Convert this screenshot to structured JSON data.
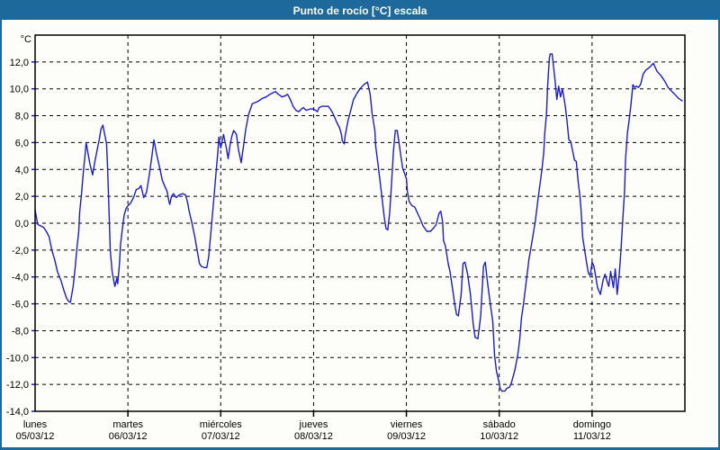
{
  "window": {
    "title": "Punto de rocío [°C] escala"
  },
  "colors": {
    "frame_blue": "#1e699c",
    "title_text": "#ffffff",
    "series_blue": "#1c1ccd",
    "grid_black": "#000000",
    "plot_background": "#fdfdfa"
  },
  "chart_data": {
    "type": "line",
    "title": "Punto de rocío [°C] escala",
    "grid": "dashed",
    "legend_position": "none",
    "y_axis": {
      "unit_label": "°C",
      "min": -14,
      "max": 14,
      "tick_step": 2,
      "ticks": [
        {
          "value": 12,
          "label": "12,0"
        },
        {
          "value": 10,
          "label": "10,0"
        },
        {
          "value": 8,
          "label": "8,0"
        },
        {
          "value": 6,
          "label": "6,0"
        },
        {
          "value": 4,
          "label": "4,0"
        },
        {
          "value": 2,
          "label": "2,0"
        },
        {
          "value": 0,
          "label": "0,0"
        },
        {
          "value": -2,
          "label": "-2,0"
        },
        {
          "value": -4,
          "label": "-4,0"
        },
        {
          "value": -6,
          "label": "-6,0"
        },
        {
          "value": -8,
          "label": "-8,0"
        },
        {
          "value": -10,
          "label": "-10,0"
        },
        {
          "value": -12,
          "label": "-12,0"
        },
        {
          "value": -14,
          "label": "-14,0"
        }
      ]
    },
    "x_axis": {
      "unit": "days",
      "range_days": [
        0,
        7
      ],
      "days": [
        {
          "name": "lunes",
          "date": "05/03/12"
        },
        {
          "name": "martes",
          "date": "06/03/12"
        },
        {
          "name": "miércoles",
          "date": "07/03/12"
        },
        {
          "name": "jueves",
          "date": "08/03/12"
        },
        {
          "name": "viernes",
          "date": "09/03/12"
        },
        {
          "name": "sábado",
          "date": "10/03/12"
        },
        {
          "name": "domingo",
          "date": "11/03/12"
        }
      ]
    },
    "series": [
      {
        "name": "Punto de rocío",
        "color": "#1c1ccd",
        "x_unit": "days_since_monday_00h",
        "y_unit": "°C",
        "points": [
          [
            0.0,
            1.0
          ],
          [
            0.02,
            0.2
          ],
          [
            0.03,
            -0.1
          ],
          [
            0.06,
            -0.2
          ],
          [
            0.09,
            -0.3
          ],
          [
            0.12,
            -0.6
          ],
          [
            0.15,
            -1.0
          ],
          [
            0.18,
            -2.0
          ],
          [
            0.21,
            -2.7
          ],
          [
            0.24,
            -3.6
          ],
          [
            0.28,
            -4.3
          ],
          [
            0.31,
            -5.0
          ],
          [
            0.34,
            -5.6
          ],
          [
            0.36,
            -5.8
          ],
          [
            0.38,
            -5.9
          ],
          [
            0.41,
            -4.7
          ],
          [
            0.43,
            -3.4
          ],
          [
            0.45,
            -1.9
          ],
          [
            0.47,
            -0.6
          ],
          [
            0.48,
            0.8
          ],
          [
            0.5,
            2.2
          ],
          [
            0.52,
            3.8
          ],
          [
            0.54,
            5.2
          ],
          [
            0.55,
            6.0
          ],
          [
            0.57,
            5.2
          ],
          [
            0.59,
            4.4
          ],
          [
            0.62,
            3.6
          ],
          [
            0.65,
            4.8
          ],
          [
            0.67,
            5.5
          ],
          [
            0.69,
            6.2
          ],
          [
            0.71,
            7.0
          ],
          [
            0.73,
            7.3
          ],
          [
            0.75,
            6.6
          ],
          [
            0.77,
            5.9
          ],
          [
            0.78,
            4.2
          ],
          [
            0.79,
            2.2
          ],
          [
            0.8,
            0.2
          ],
          [
            0.81,
            -2.0
          ],
          [
            0.83,
            -3.6
          ],
          [
            0.85,
            -4.4
          ],
          [
            0.86,
            -4.7
          ],
          [
            0.88,
            -4.1
          ],
          [
            0.89,
            -4.5
          ],
          [
            0.91,
            -2.9
          ],
          [
            0.92,
            -1.6
          ],
          [
            0.94,
            -0.4
          ],
          [
            0.96,
            0.6
          ],
          [
            0.98,
            1.1
          ],
          [
            1.0,
            1.3
          ],
          [
            1.03,
            1.5
          ],
          [
            1.06,
            1.9
          ],
          [
            1.09,
            2.5
          ],
          [
            1.12,
            2.6
          ],
          [
            1.14,
            2.8
          ],
          [
            1.17,
            1.9
          ],
          [
            1.2,
            2.3
          ],
          [
            1.23,
            3.6
          ],
          [
            1.26,
            5.1
          ],
          [
            1.28,
            6.2
          ],
          [
            1.31,
            5.1
          ],
          [
            1.34,
            4.2
          ],
          [
            1.37,
            3.2
          ],
          [
            1.4,
            2.7
          ],
          [
            1.42,
            2.4
          ],
          [
            1.44,
            1.7
          ],
          [
            1.45,
            1.4
          ],
          [
            1.47,
            2.0
          ],
          [
            1.49,
            2.2
          ],
          [
            1.52,
            1.9
          ],
          [
            1.55,
            2.1
          ],
          [
            1.59,
            2.2
          ],
          [
            1.62,
            2.1
          ],
          [
            1.64,
            1.6
          ],
          [
            1.66,
            0.9
          ],
          [
            1.69,
            0.0
          ],
          [
            1.72,
            -1.0
          ],
          [
            1.75,
            -2.2
          ],
          [
            1.77,
            -3.0
          ],
          [
            1.79,
            -3.2
          ],
          [
            1.82,
            -3.3
          ],
          [
            1.85,
            -3.3
          ],
          [
            1.87,
            -2.5
          ],
          [
            1.89,
            -1.0
          ],
          [
            1.91,
            0.6
          ],
          [
            1.93,
            2.2
          ],
          [
            1.95,
            3.8
          ],
          [
            1.97,
            5.4
          ],
          [
            1.98,
            6.4
          ],
          [
            2.0,
            5.6
          ],
          [
            2.03,
            6.6
          ],
          [
            2.06,
            5.6
          ],
          [
            2.08,
            4.8
          ],
          [
            2.1,
            5.8
          ],
          [
            2.12,
            6.5
          ],
          [
            2.14,
            6.9
          ],
          [
            2.17,
            6.6
          ],
          [
            2.19,
            5.5
          ],
          [
            2.22,
            4.5
          ],
          [
            2.25,
            6.0
          ],
          [
            2.27,
            7.0
          ],
          [
            2.3,
            8.1
          ],
          [
            2.34,
            8.9
          ],
          [
            2.38,
            9.0
          ],
          [
            2.41,
            9.1
          ],
          [
            2.45,
            9.3
          ],
          [
            2.49,
            9.4
          ],
          [
            2.53,
            9.6
          ],
          [
            2.56,
            9.7
          ],
          [
            2.59,
            9.8
          ],
          [
            2.62,
            9.6
          ],
          [
            2.66,
            9.4
          ],
          [
            2.7,
            9.5
          ],
          [
            2.72,
            9.6
          ],
          [
            2.75,
            9.2
          ],
          [
            2.78,
            8.7
          ],
          [
            2.81,
            8.4
          ],
          [
            2.84,
            8.3
          ],
          [
            2.87,
            8.5
          ],
          [
            2.89,
            8.6
          ],
          [
            2.92,
            8.4
          ],
          [
            2.96,
            8.5
          ],
          [
            3.0,
            8.5
          ],
          [
            3.04,
            8.3
          ],
          [
            3.06,
            8.6
          ],
          [
            3.09,
            8.7
          ],
          [
            3.13,
            8.7
          ],
          [
            3.16,
            8.7
          ],
          [
            3.19,
            8.4
          ],
          [
            3.22,
            8.0
          ],
          [
            3.25,
            7.5
          ],
          [
            3.28,
            7.1
          ],
          [
            3.3,
            6.6
          ],
          [
            3.31,
            6.1
          ],
          [
            3.33,
            5.9
          ],
          [
            3.34,
            6.5
          ],
          [
            3.37,
            7.6
          ],
          [
            3.4,
            8.4
          ],
          [
            3.43,
            9.2
          ],
          [
            3.47,
            9.7
          ],
          [
            3.5,
            10.0
          ],
          [
            3.54,
            10.3
          ],
          [
            3.58,
            10.5
          ],
          [
            3.61,
            9.6
          ],
          [
            3.63,
            8.2
          ],
          [
            3.66,
            6.9
          ],
          [
            3.67,
            5.7
          ],
          [
            3.69,
            4.6
          ],
          [
            3.72,
            2.9
          ],
          [
            3.74,
            1.7
          ],
          [
            3.76,
            0.5
          ],
          [
            3.78,
            -0.4
          ],
          [
            3.8,
            -0.5
          ],
          [
            3.82,
            0.8
          ],
          [
            3.84,
            3.0
          ],
          [
            3.86,
            5.3
          ],
          [
            3.88,
            6.9
          ],
          [
            3.9,
            6.9
          ],
          [
            3.92,
            6.0
          ],
          [
            3.94,
            5.0
          ],
          [
            3.96,
            4.1
          ],
          [
            4.0,
            3.3
          ],
          [
            4.01,
            2.4
          ],
          [
            4.03,
            1.6
          ],
          [
            4.06,
            1.3
          ],
          [
            4.09,
            1.2
          ],
          [
            4.11,
            0.9
          ],
          [
            4.15,
            0.3
          ],
          [
            4.18,
            -0.2
          ],
          [
            4.22,
            -0.6
          ],
          [
            4.26,
            -0.6
          ],
          [
            4.3,
            -0.3
          ],
          [
            4.32,
            -0.1
          ],
          [
            4.35,
            0.7
          ],
          [
            4.37,
            0.9
          ],
          [
            4.39,
            0.1
          ],
          [
            4.4,
            -1.3
          ],
          [
            4.42,
            -1.7
          ],
          [
            4.45,
            -3.0
          ],
          [
            4.47,
            -3.6
          ],
          [
            4.5,
            -5.0
          ],
          [
            4.52,
            -6.0
          ],
          [
            4.54,
            -6.8
          ],
          [
            4.56,
            -6.9
          ],
          [
            4.59,
            -5.3
          ],
          [
            4.61,
            -3.0
          ],
          [
            4.63,
            -2.9
          ],
          [
            4.66,
            -3.8
          ],
          [
            4.69,
            -5.3
          ],
          [
            4.72,
            -7.5
          ],
          [
            4.74,
            -8.5
          ],
          [
            4.77,
            -8.6
          ],
          [
            4.8,
            -6.9
          ],
          [
            4.83,
            -3.2
          ],
          [
            4.85,
            -2.9
          ],
          [
            4.87,
            -4.2
          ],
          [
            4.89,
            -5.3
          ],
          [
            4.91,
            -6.3
          ],
          [
            4.93,
            -7.3
          ],
          [
            4.95,
            -9.9
          ],
          [
            4.97,
            -11.0
          ],
          [
            5.0,
            -11.9
          ],
          [
            5.01,
            -12.3
          ],
          [
            5.03,
            -12.5
          ],
          [
            5.06,
            -12.5
          ],
          [
            5.08,
            -12.3
          ],
          [
            5.11,
            -12.2
          ],
          [
            5.13,
            -11.9
          ],
          [
            5.15,
            -11.4
          ],
          [
            5.17,
            -10.9
          ],
          [
            5.2,
            -9.8
          ],
          [
            5.22,
            -8.7
          ],
          [
            5.24,
            -7.0
          ],
          [
            5.26,
            -6.1
          ],
          [
            5.29,
            -4.4
          ],
          [
            5.32,
            -2.7
          ],
          [
            5.36,
            -1.1
          ],
          [
            5.39,
            0.2
          ],
          [
            5.42,
            1.9
          ],
          [
            5.46,
            4.0
          ],
          [
            5.48,
            5.3
          ],
          [
            5.49,
            6.7
          ],
          [
            5.51,
            8.2
          ],
          [
            5.52,
            10.0
          ],
          [
            5.54,
            12.3
          ],
          [
            5.55,
            12.6
          ],
          [
            5.57,
            12.6
          ],
          [
            5.58,
            12.0
          ],
          [
            5.6,
            10.7
          ],
          [
            5.62,
            9.2
          ],
          [
            5.64,
            10.2
          ],
          [
            5.66,
            9.4
          ],
          [
            5.68,
            10.0
          ],
          [
            5.71,
            8.8
          ],
          [
            5.73,
            7.6
          ],
          [
            5.75,
            6.2
          ],
          [
            5.77,
            6.1
          ],
          [
            5.79,
            5.4
          ],
          [
            5.81,
            4.7
          ],
          [
            5.83,
            4.6
          ],
          [
            5.85,
            3.1
          ],
          [
            5.87,
            2.0
          ],
          [
            5.88,
            1.1
          ],
          [
            5.9,
            -1.1
          ],
          [
            5.92,
            -2.0
          ],
          [
            5.94,
            -2.9
          ],
          [
            5.96,
            -3.7
          ],
          [
            5.98,
            -3.9
          ],
          [
            6.0,
            -2.9
          ],
          [
            6.02,
            -3.2
          ],
          [
            6.04,
            -4.0
          ],
          [
            6.06,
            -4.8
          ],
          [
            6.09,
            -5.3
          ],
          [
            6.12,
            -4.2
          ],
          [
            6.14,
            -3.8
          ],
          [
            6.16,
            -4.3
          ],
          [
            6.18,
            -4.7
          ],
          [
            6.2,
            -3.6
          ],
          [
            6.21,
            -4.0
          ],
          [
            6.23,
            -4.8
          ],
          [
            6.25,
            -3.4
          ],
          [
            6.26,
            -4.2
          ],
          [
            6.27,
            -5.3
          ],
          [
            6.29,
            -4.0
          ],
          [
            6.31,
            -2.2
          ],
          [
            6.33,
            0.2
          ],
          [
            6.35,
            2.4
          ],
          [
            6.36,
            4.7
          ],
          [
            6.38,
            6.7
          ],
          [
            6.4,
            7.7
          ],
          [
            6.42,
            8.9
          ],
          [
            6.44,
            10.3
          ],
          [
            6.46,
            10.1
          ],
          [
            6.48,
            10.2
          ],
          [
            6.5,
            10.1
          ],
          [
            6.52,
            10.3
          ],
          [
            6.53,
            10.5
          ],
          [
            6.55,
            11.1
          ],
          [
            6.58,
            11.4
          ],
          [
            6.62,
            11.6
          ],
          [
            6.66,
            11.9
          ],
          [
            6.7,
            11.3
          ],
          [
            6.74,
            11.0
          ],
          [
            6.78,
            10.6
          ],
          [
            6.82,
            10.1
          ],
          [
            6.86,
            9.8
          ],
          [
            6.89,
            9.6
          ],
          [
            6.93,
            9.3
          ],
          [
            6.97,
            9.1
          ]
        ]
      }
    ]
  }
}
